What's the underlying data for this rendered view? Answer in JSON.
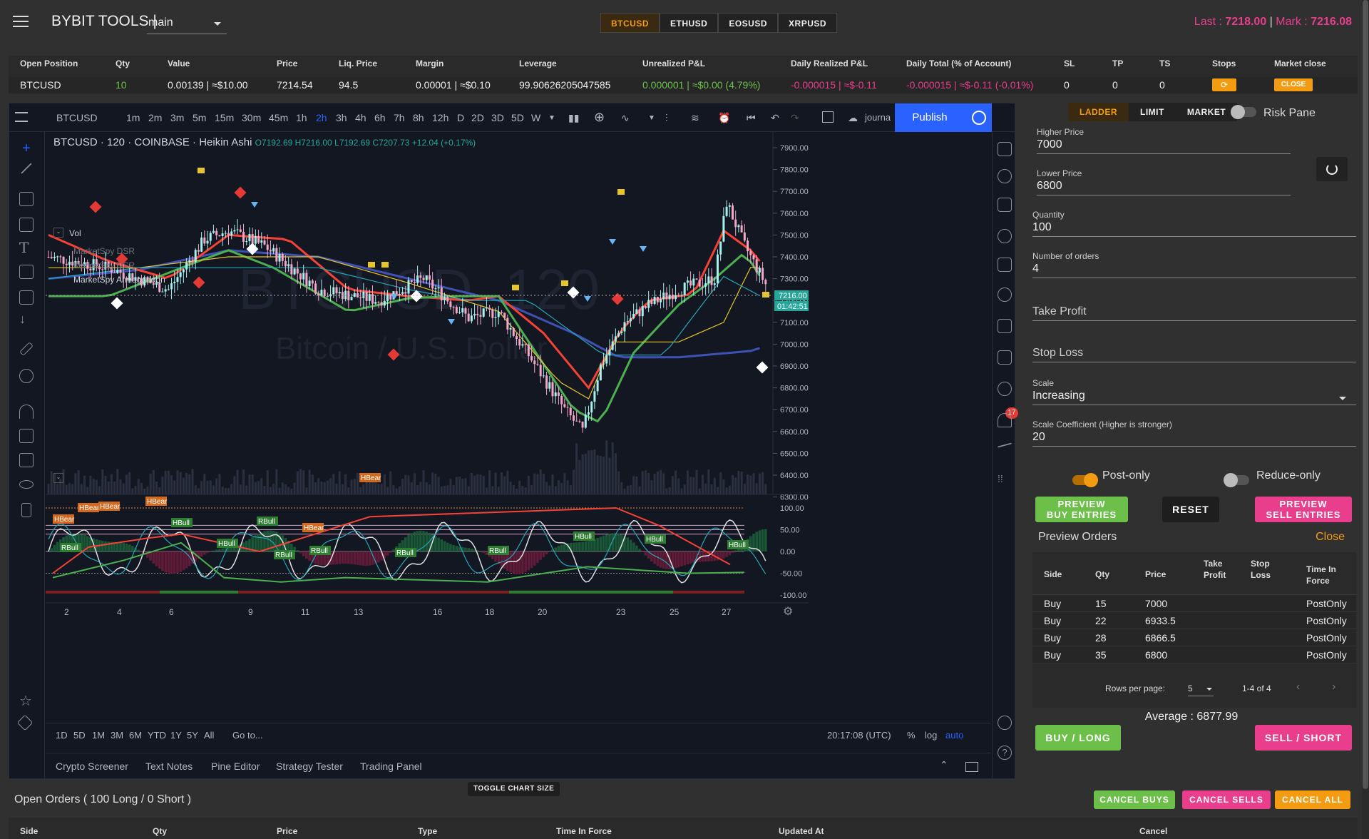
{
  "header": {
    "brand": "BYBIT TOOLS |",
    "account": "main",
    "symbols": [
      "BTCUSD",
      "ETHUSD",
      "EOSUSD",
      "XRPUSD"
    ],
    "active_symbol": "BTCUSD",
    "last_label": "Last : ",
    "last_value": "7218.00",
    "mark_label": "Mark : ",
    "mark_value": "7216.08"
  },
  "position": {
    "headers": [
      "Open Position",
      "Qty",
      "Value",
      "Price",
      "Liq. Price",
      "Margin",
      "Leverage",
      "Unrealized P&L",
      "Daily Realized P&L",
      "Daily Total (% of Account)",
      "SL",
      "TP",
      "TS",
      "Stops",
      "Market close"
    ],
    "row": {
      "symbol": "BTCUSD",
      "qty": "10",
      "value": "0.00139 | ≈$10.00",
      "price": "7214.54",
      "liq_price": "94.5",
      "margin": "0.00001 | ≈$0.10",
      "leverage": "99.90626205047585",
      "unrealized": "0.000001 | ≈$0.00 (4.79%)",
      "daily_realized": "-0.000015 | ≈$-0.11",
      "daily_total": "-0.000015 | ≈$-0.11 (-0.01%)",
      "sl": "0",
      "tp": "0",
      "ts": "0",
      "close_label": "CLOSE"
    }
  },
  "chart": {
    "symbol": "BTCUSD",
    "timeframes": [
      "1m",
      "2m",
      "3m",
      "5m",
      "15m",
      "30m",
      "45m",
      "1h",
      "2h",
      "3h",
      "4h",
      "6h",
      "7h",
      "8h",
      "12h",
      "D",
      "2D",
      "3D",
      "5D",
      "W"
    ],
    "active_timeframe": "2h",
    "journal_label": "journa",
    "publish_label": "Publish",
    "legend_title": "BTCUSD · 120 · COINBASE · Heikin Ashi",
    "legend_ohlc": "O7192.69 H7216.00 L7192.69 C7207.73 +12.04 (+0.17%)",
    "vol_label": "Vol",
    "indicators": [
      "MarketSpy DSR",
      "MarketSpy DSR",
      "MarketSpy Armageddon"
    ],
    "watermark_main": "BTCUSD, 120",
    "watermark_sub": "Bitcoin / U.S. Dollar",
    "price_ticks": [
      "7900.00",
      "7800.00",
      "7700.00",
      "7600.00",
      "7500.00",
      "7400.00",
      "7300.00",
      "7200.00",
      "7100.00",
      "7000.00",
      "6900.00",
      "6800.00",
      "6700.00",
      "6600.00",
      "6500.00",
      "6400.00",
      "6300.00"
    ],
    "current_price": "7216.00",
    "countdown": "01:42:51",
    "osc_ticks": [
      "100.00",
      "50.00",
      "0.00",
      "-50.00",
      "-100.00"
    ],
    "date_ticks": [
      "2",
      "4",
      "6",
      "9",
      "11",
      "13",
      "16",
      "18",
      "20",
      "23",
      "25",
      "27"
    ],
    "osc_labels": [
      "HBear",
      "HBear",
      "HBear",
      "HBear",
      "HBear",
      "HBear",
      "HBull",
      "HBull",
      "RBull",
      "RBull",
      "RBull",
      "RBull",
      "RBull",
      "HBull",
      "HBull",
      "HBull",
      "RBull"
    ],
    "ranges": [
      "1D",
      "5D",
      "1M",
      "3M",
      "6M",
      "YTD",
      "1Y",
      "5Y",
      "All"
    ],
    "goto_label": "Go to...",
    "clock": "20:17:08 (UTC)",
    "scale_pct": "%",
    "scale_log": "log",
    "scale_auto": "auto",
    "bottom_tabs": [
      "Crypto Screener",
      "Text Notes",
      "Pine Editor",
      "Strategy Tester",
      "Trading Panel"
    ],
    "toggle_tooltip": "TOGGLE CHART SIZE",
    "notif_count": "17"
  },
  "panel": {
    "modes": [
      "LADDER",
      "LIMIT",
      "MARKET"
    ],
    "active_mode": "LADDER",
    "risk_pane_label": "Risk Pane",
    "higher_price_label": "Higher Price",
    "higher_price": "7000",
    "lower_price_label": "Lower Price",
    "lower_price": "6800",
    "quantity_label": "Quantity",
    "quantity": "100",
    "orders_label": "Number of orders",
    "orders": "4",
    "take_profit_label": "Take Profit",
    "stop_loss_label": "Stop Loss",
    "scale_label": "Scale",
    "scale_value": "Increasing",
    "coef_label": "Scale Coefficient (Higher is stronger)",
    "coef_value": "20",
    "post_only_label": "Post-only",
    "reduce_only_label": "Reduce-only",
    "preview_buy_line1": "PREVIEW",
    "preview_buy_line2": "BUY ENTRIES",
    "reset_label": "RESET",
    "preview_sell_line1": "PREVIEW",
    "preview_sell_line2": "SELL ENTRIES",
    "preview_title": "Preview Orders",
    "preview_close": "Close",
    "table_headers": [
      "Side",
      "Qty",
      "Price",
      "Take Profit",
      "Stop Loss",
      "Time In Force"
    ],
    "rows": [
      {
        "side": "Buy",
        "qty": "15",
        "price": "7000",
        "tif": "PostOnly"
      },
      {
        "side": "Buy",
        "qty": "22",
        "price": "6933.5",
        "tif": "PostOnly"
      },
      {
        "side": "Buy",
        "qty": "28",
        "price": "6866.5",
        "tif": "PostOnly"
      },
      {
        "side": "Buy",
        "qty": "35",
        "price": "6800",
        "tif": "PostOnly"
      }
    ],
    "rows_per_page_label": "Rows per page:",
    "rows_per_page": "5",
    "page_range": "1-4 of 4",
    "average": "Average : 6877.99",
    "buy_label": "BUY / LONG",
    "sell_label": "SELL / SHORT"
  },
  "orders": {
    "title": "Open Orders ( 100 Long / 0 Short )",
    "cancel_buys": "CANCEL BUYS",
    "cancel_sells": "CANCEL SELLS",
    "cancel_all": "CANCEL ALL",
    "headers": [
      "Side",
      "Qty",
      "Price",
      "Type",
      "Time In Force",
      "Updated At",
      "Cancel"
    ]
  },
  "colors": {
    "accent": "#f39c12",
    "buy": "#6cc04a",
    "sell": "#e83e8c",
    "chart_bg": "#131722",
    "tv_blue": "#2962ff"
  }
}
